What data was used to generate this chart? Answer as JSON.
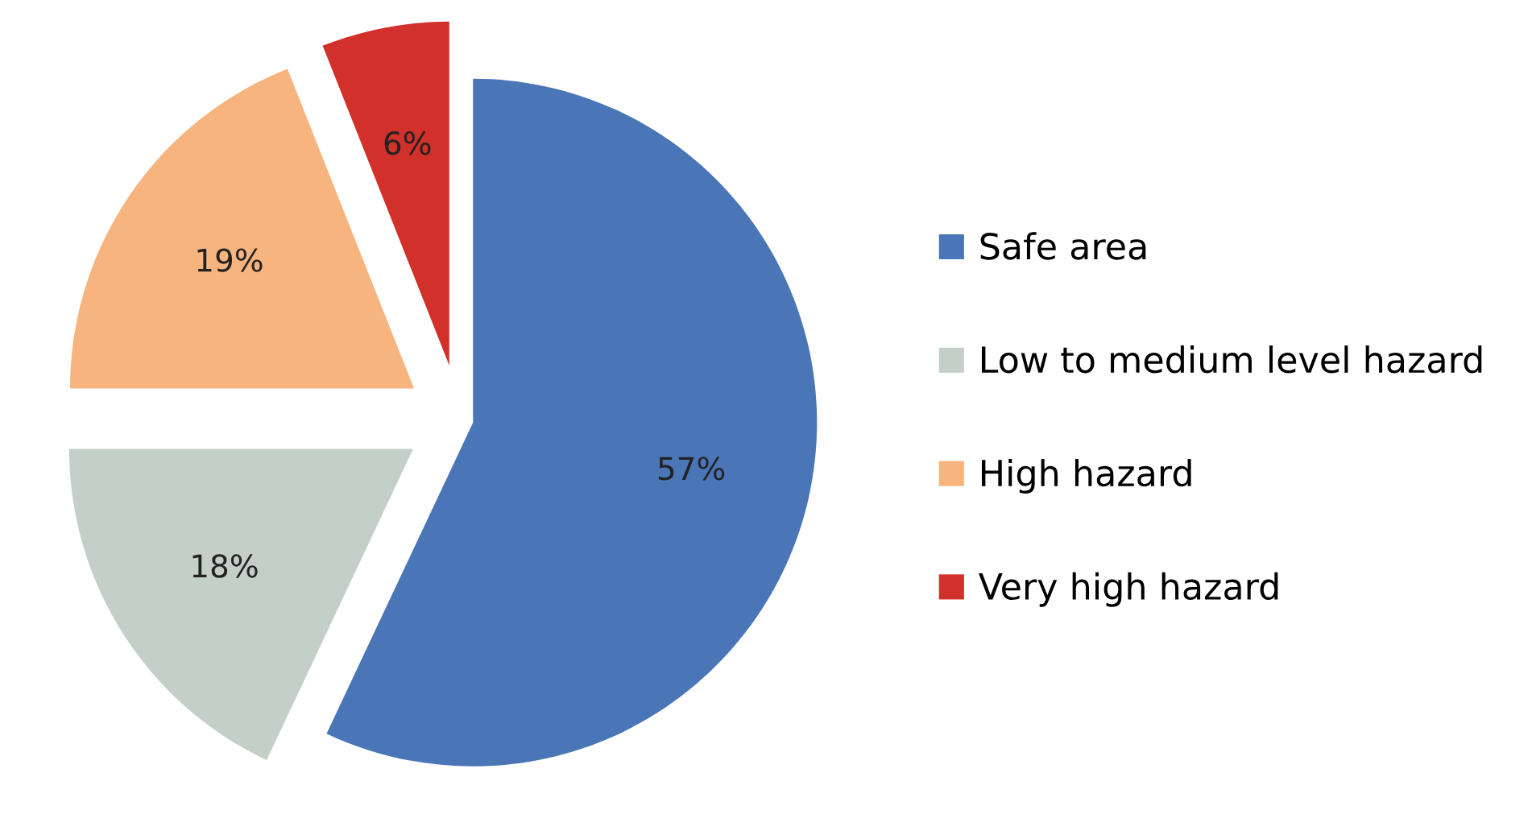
{
  "chart_data": {
    "type": "pie",
    "categories": [
      "Safe area",
      "Low to medium level hazard",
      "High hazard",
      "Very high hazard"
    ],
    "values": [
      57,
      18,
      19,
      6
    ],
    "value_labels": [
      "57%",
      "18%",
      "19%",
      "6%"
    ],
    "colors": [
      "#4a76b8",
      "#c5cfca",
      "#f8b47e",
      "#d2302a"
    ],
    "legend": "right"
  }
}
